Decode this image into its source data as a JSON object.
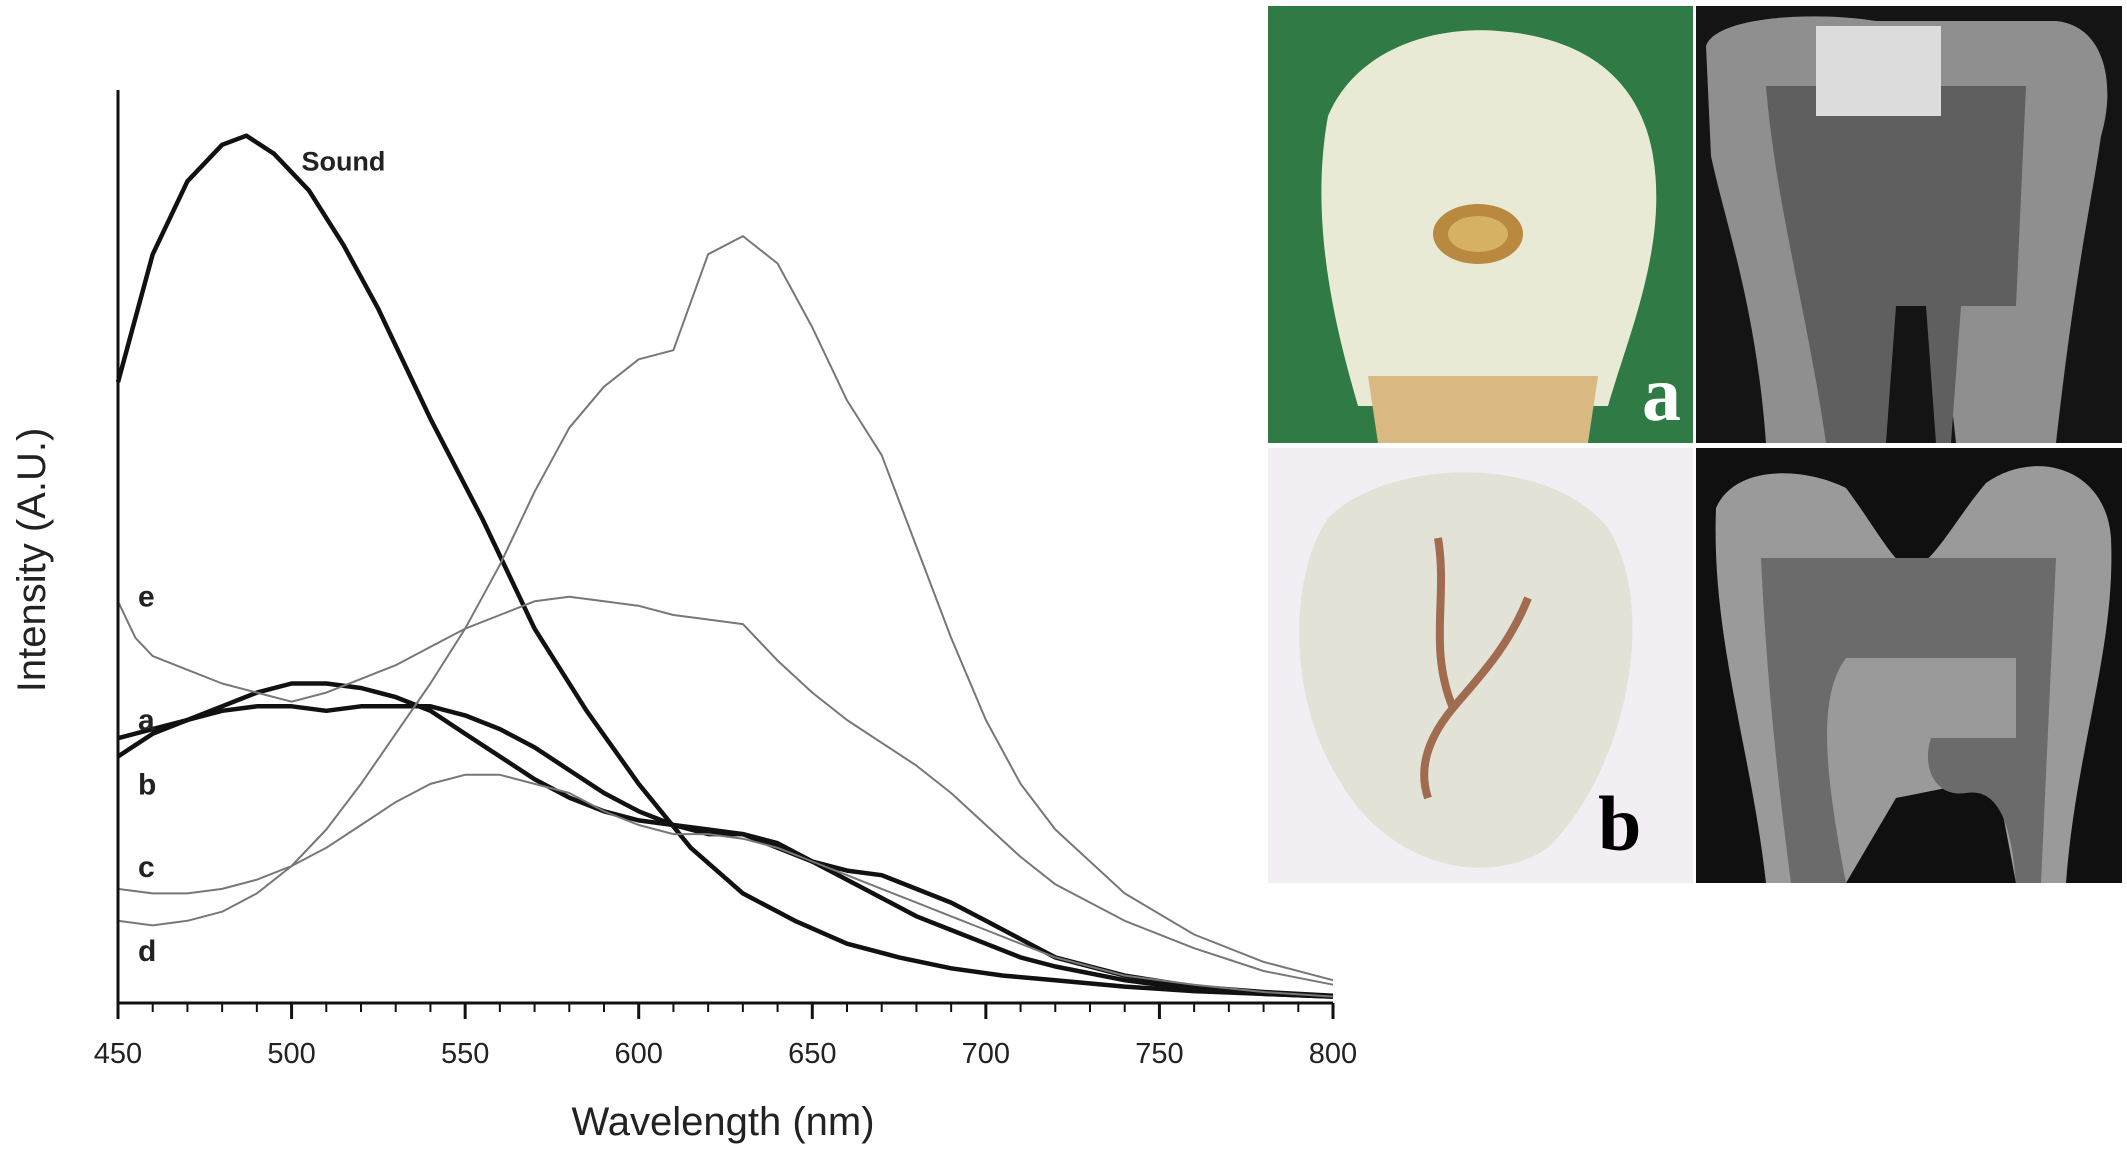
{
  "chart_data": {
    "type": "line",
    "xlabel": "Wavelength (nm)",
    "ylabel": "Intensity (A.U.)",
    "xlim": [
      450,
      800
    ],
    "ylim": [
      0,
      100
    ],
    "xticks": [
      450,
      500,
      550,
      600,
      650,
      700,
      750,
      800
    ],
    "grid": false,
    "legend": "none",
    "series": [
      {
        "name": "Sound",
        "weight": "bold",
        "x": [
          450,
          460,
          470,
          480,
          487,
          495,
          505,
          515,
          525,
          540,
          555,
          570,
          585,
          600,
          615,
          630,
          645,
          660,
          675,
          690,
          705,
          720,
          740,
          760,
          780,
          800
        ],
        "y": [
          68,
          82,
          90,
          94,
          95,
          93,
          89,
          83,
          76,
          64,
          53,
          41,
          32,
          24,
          17,
          12,
          9,
          6.5,
          5,
          3.8,
          3,
          2.5,
          1.8,
          1.3,
          1,
          0.7
        ]
      },
      {
        "name": "a",
        "weight": "bold",
        "x": [
          450,
          460,
          470,
          480,
          490,
          500,
          510,
          520,
          530,
          540,
          550,
          560,
          570,
          580,
          590,
          600,
          610,
          620,
          630,
          640,
          650,
          660,
          670,
          680,
          690,
          700,
          710,
          720,
          740,
          760,
          780,
          800
        ],
        "y": [
          29,
          30,
          31,
          32,
          32.5,
          32.5,
          32,
          32.5,
          32.5,
          32.5,
          31.5,
          30,
          28,
          25.5,
          23,
          21,
          19.5,
          18.5,
          18.5,
          17,
          15.5,
          14.5,
          14,
          12.5,
          11,
          9,
          7,
          5,
          3,
          1.8,
          1.2,
          0.8
        ]
      },
      {
        "name": "b",
        "weight": "bold",
        "x": [
          450,
          460,
          470,
          480,
          490,
          500,
          510,
          520,
          530,
          540,
          550,
          560,
          570,
          580,
          590,
          600,
          610,
          620,
          630,
          640,
          650,
          660,
          670,
          680,
          690,
          700,
          710,
          720,
          740,
          760,
          780,
          800
        ],
        "y": [
          27,
          29.5,
          31,
          32.5,
          34,
          35,
          35,
          34.5,
          33.5,
          32,
          29.5,
          27,
          24.5,
          22.5,
          21,
          20,
          19.5,
          19,
          18.5,
          17.5,
          15.5,
          13.5,
          11.5,
          9.5,
          8,
          6.5,
          5,
          4,
          2.5,
          1.5,
          1,
          0.7
        ]
      },
      {
        "name": "c",
        "weight": "normal",
        "x": [
          450,
          460,
          470,
          480,
          490,
          500,
          510,
          520,
          530,
          540,
          550,
          560,
          570,
          580,
          590,
          600,
          610,
          620,
          630,
          640,
          650,
          660,
          670,
          680,
          690,
          700,
          710,
          720,
          740,
          760,
          780,
          800
        ],
        "y": [
          12.5,
          12,
          12,
          12.5,
          13.5,
          15,
          17,
          19.5,
          22,
          24,
          25,
          25,
          24,
          23,
          21,
          19.5,
          18.5,
          18.5,
          18,
          17,
          15.5,
          14,
          12.5,
          11,
          9.5,
          8,
          6.5,
          5,
          3,
          2,
          1.2,
          0.7
        ]
      },
      {
        "name": "d",
        "weight": "normal",
        "x": [
          450,
          460,
          470,
          480,
          490,
          500,
          510,
          520,
          530,
          540,
          550,
          560,
          570,
          580,
          590,
          600,
          610,
          620,
          630,
          640,
          650,
          660,
          670,
          680,
          690,
          700,
          710,
          720,
          740,
          760,
          780,
          800
        ],
        "y": [
          9,
          8.5,
          9,
          10,
          12,
          15,
          19,
          24,
          29.5,
          35,
          41,
          48,
          56,
          63,
          67.5,
          70.5,
          71.5,
          82,
          84,
          81,
          74,
          66,
          60,
          50,
          40,
          31,
          24,
          19,
          12,
          7.5,
          4.5,
          2.5
        ]
      },
      {
        "name": "e",
        "weight": "normal",
        "x": [
          450,
          455,
          460,
          470,
          480,
          490,
          500,
          510,
          520,
          530,
          540,
          550,
          560,
          570,
          580,
          590,
          600,
          610,
          620,
          630,
          640,
          650,
          660,
          670,
          680,
          690,
          700,
          710,
          720,
          740,
          760,
          780,
          800
        ],
        "y": [
          44,
          40,
          38,
          36.5,
          35,
          34,
          33,
          34,
          35.5,
          37,
          39,
          41,
          42.5,
          44,
          44.5,
          44,
          43.5,
          42.5,
          42,
          41.5,
          37.5,
          34,
          31,
          28.5,
          26,
          23,
          19.5,
          16,
          13,
          9,
          6,
          3.5,
          2
        ]
      }
    ]
  },
  "photo_panels": [
    {
      "letter": "a",
      "kind": "photo",
      "bg": "#2f7a45",
      "letter_color": "#ffffff"
    },
    {
      "kind": "xray",
      "bg": "#1a1a1a"
    },
    {
      "letter": "b",
      "kind": "photo",
      "bg": "#f2eef4",
      "letter_color": "#000000"
    },
    {
      "kind": "xray",
      "bg": "#111111"
    }
  ]
}
